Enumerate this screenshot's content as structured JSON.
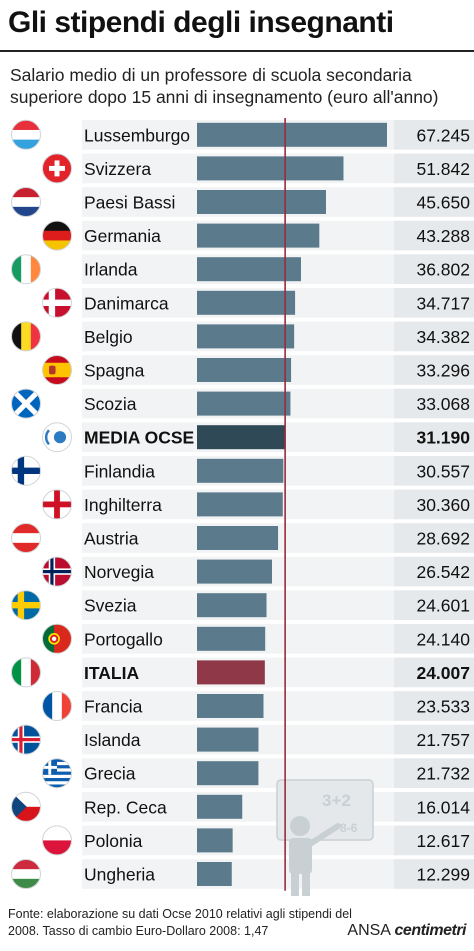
{
  "title": "Gli stipendi degli insegnanti",
  "subtitle": "Salario medio di un professore di scuola secondaria superiore dopo 15 anni di insegnamento (euro all'anno)",
  "footer": "Fonte: elaborazione su dati Ocse 2010 relativi agli stipendi del 2008. Tasso di cambio Euro-Dollaro 2008: 1,47",
  "credit": {
    "prefix": "ANSA",
    "brand": "centimetri"
  },
  "colors": {
    "bar": "#5b7a8c",
    "average_bar": "#2f4a56",
    "italy_bar": "#8e3848",
    "reference_line": "#9a2a3a",
    "value_box": "#e6e9eb",
    "row_band": "#f1f3f4"
  },
  "chart_data": {
    "type": "bar",
    "orientation": "horizontal",
    "title": "Gli stipendi degli insegnanti",
    "subtitle": "Salario medio di un professore di scuola secondaria superiore dopo 15 anni di insegnamento (euro all'anno)",
    "reference_line": 31190,
    "xlim": [
      0,
      67245
    ],
    "grid": false,
    "categories": [
      "Lussemburgo",
      "Svizzera",
      "Paesi Bassi",
      "Germania",
      "Irlanda",
      "Danimarca",
      "Belgio",
      "Spagna",
      "Scozia",
      "MEDIA OCSE",
      "Finlandia",
      "Inghilterra",
      "Austria",
      "Norvegia",
      "Svezia",
      "Portogallo",
      "ITALIA",
      "Francia",
      "Islanda",
      "Grecia",
      "Rep. Ceca",
      "Polonia",
      "Ungheria"
    ],
    "values": [
      67245,
      51842,
      45650,
      43288,
      36802,
      34717,
      34382,
      33296,
      33068,
      31190,
      30557,
      30360,
      28692,
      26542,
      24601,
      24140,
      24007,
      23533,
      21757,
      21732,
      16014,
      12617,
      12299
    ],
    "value_labels": [
      "67.245",
      "51.842",
      "45.650",
      "43.288",
      "36.802",
      "34.717",
      "34.382",
      "33.296",
      "33.068",
      "31.190",
      "30.557",
      "30.360",
      "28.692",
      "26.542",
      "24.601",
      "24.140",
      "24.007",
      "23.533",
      "21.757",
      "21.732",
      "16.014",
      "12.617",
      "12.299"
    ],
    "highlighted": [
      "MEDIA OCSE",
      "ITALIA"
    ],
    "flags": [
      "luxembourg-flag-icon",
      "switzerland-flag-icon",
      "netherlands-flag-icon",
      "germany-flag-icon",
      "ireland-flag-icon",
      "denmark-flag-icon",
      "belgium-flag-icon",
      "spain-flag-icon",
      "scotland-flag-icon",
      "oecd-logo-icon",
      "finland-flag-icon",
      "england-flag-icon",
      "austria-flag-icon",
      "norway-flag-icon",
      "sweden-flag-icon",
      "portugal-flag-icon",
      "italy-flag-icon",
      "france-flag-icon",
      "iceland-flag-icon",
      "greece-flag-icon",
      "czech-flag-icon",
      "poland-flag-icon",
      "hungary-flag-icon"
    ],
    "illustration": {
      "name": "teacher-blackboard-icon",
      "board_text": [
        "3+2",
        "8-6"
      ]
    }
  }
}
